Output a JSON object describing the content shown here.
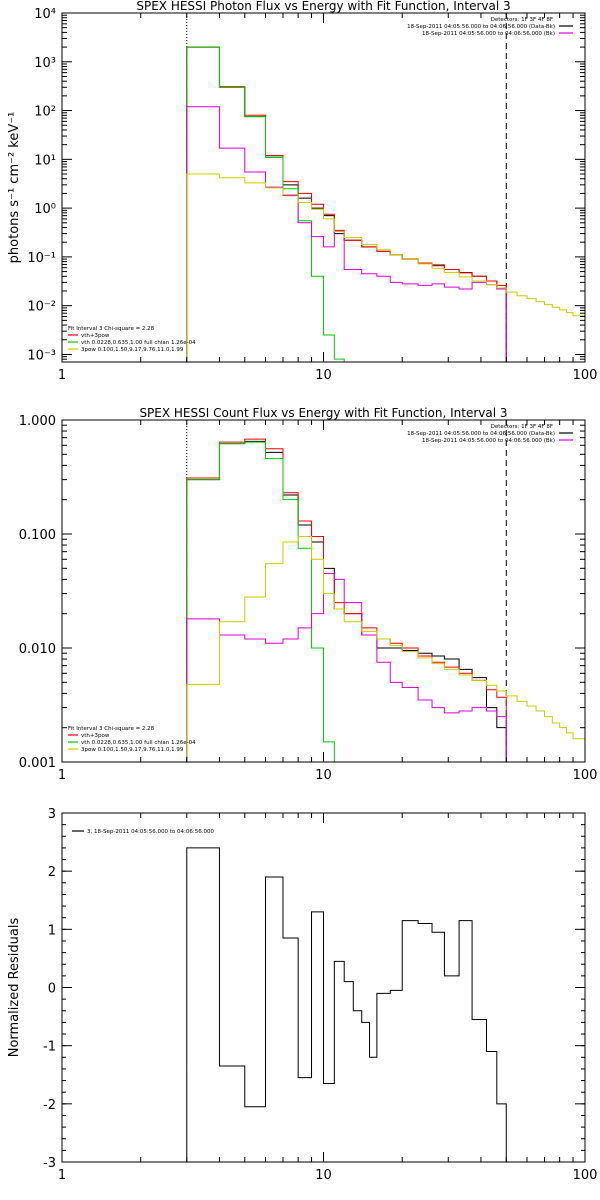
{
  "chart_data": [
    {
      "type": "line",
      "title": "SPEX HESSI Photon Flux vs Energy with Fit Function, Interval 3",
      "ylabel": "photons s⁻¹ cm⁻² keV⁻¹",
      "xlabel": "",
      "xscale": "log",
      "yscale": "log",
      "xlim": [
        1,
        100
      ],
      "ylim": [
        0.0007,
        10000
      ],
      "xticks": [
        "1",
        "10",
        "100"
      ],
      "yticks": [
        {
          "value": 0.001,
          "label": "10⁻³"
        },
        {
          "value": 0.01,
          "label": "10⁻²"
        },
        {
          "value": 0.1,
          "label": "10⁻¹"
        },
        {
          "value": 1,
          "label": "10⁰"
        },
        {
          "value": 10,
          "label": "10¹"
        },
        {
          "value": 100,
          "label": "10²"
        },
        {
          "value": 1000,
          "label": "10³"
        },
        {
          "value": 10000,
          "label": "10⁴"
        }
      ],
      "vlines": [
        {
          "x": 3,
          "style": "dotted"
        },
        {
          "x": 50,
          "style": "dashed"
        }
      ],
      "legend_topright": {
        "header": "Detectors: 1F 3F 4F 8F",
        "entries": [
          {
            "text": "18-Sep-2011 04:05:56.000 to 04:06:56.000 (Data-Bk)",
            "color": "#000000"
          },
          {
            "text": "18-Sep-2011 04:05:56.000 to 04:06:56.000 (Bk)",
            "color": "#dd00dd"
          }
        ]
      },
      "legend_bottomleft": {
        "header": "Fit Interval 3   Chi-square = 2.28",
        "entries": [
          {
            "text": "vth+3pow",
            "color": "#ff0000"
          },
          {
            "text": "vth 0.0228,0.635,1.00  full chian 1.26e-04",
            "color": "#00cc00"
          },
          {
            "text": "3pow 0.100,1.50,9.17,9.76,11.0,1.99",
            "color": "#cccc00"
          }
        ]
      },
      "series": [
        {
          "color": "#000000",
          "edges": [
            3,
            4,
            5,
            6,
            7,
            8,
            9,
            10,
            11,
            12,
            14,
            16,
            18,
            20,
            23,
            26,
            29,
            33,
            37,
            42,
            46,
            50
          ],
          "values": [
            2000,
            300,
            75,
            11,
            3.0,
            1.6,
            1.0,
            0.7,
            0.3,
            0.22,
            0.16,
            0.13,
            0.11,
            0.09,
            0.075,
            0.068,
            0.055,
            0.048,
            0.04,
            0.032,
            0.022
          ]
        },
        {
          "color": "#ff0000",
          "edges": [
            3,
            4,
            5,
            6,
            7,
            8,
            9,
            10,
            11,
            12,
            14,
            16,
            18,
            20,
            23,
            26,
            29,
            33,
            37,
            42,
            46,
            50
          ],
          "values": [
            2000,
            310,
            80,
            12,
            3.5,
            2.0,
            1.2,
            0.75,
            0.35,
            0.22,
            0.16,
            0.13,
            0.11,
            0.09,
            0.075,
            0.066,
            0.055,
            0.047,
            0.04,
            0.032,
            0.026
          ]
        },
        {
          "color": "#00cc00",
          "edges": [
            3,
            4,
            5,
            6,
            7,
            8,
            9,
            10,
            11,
            12
          ],
          "values": [
            2000,
            300,
            75,
            11,
            2.5,
            0.55,
            0.04,
            0.0025,
            0.0008
          ]
        },
        {
          "color": "#dd00dd",
          "edges": [
            3,
            4,
            5,
            6,
            7,
            8,
            9,
            10,
            11,
            12,
            14,
            16,
            18,
            20,
            23,
            26,
            29,
            33,
            37,
            42,
            46,
            50
          ],
          "values": [
            120,
            17,
            5.5,
            2.7,
            1.8,
            0.5,
            0.26,
            0.16,
            0.34,
            0.055,
            0.045,
            0.04,
            0.03,
            0.028,
            0.026,
            0.028,
            0.024,
            0.022,
            0.03,
            0.027,
            0.022
          ]
        },
        {
          "color": "#cccc00",
          "edges": [
            3,
            4,
            5,
            6,
            7,
            8,
            9,
            10,
            11,
            12,
            14,
            16,
            18,
            20,
            23,
            26,
            29,
            33,
            37,
            42,
            46,
            50,
            55,
            60,
            65,
            70,
            75,
            80,
            85,
            90,
            100
          ],
          "values": [
            5.0,
            4.2,
            3.3,
            2.6,
            1.9,
            1.3,
            0.95,
            0.6,
            0.33,
            0.25,
            0.18,
            0.14,
            0.11,
            0.089,
            0.072,
            0.058,
            0.048,
            0.039,
            0.032,
            0.027,
            0.023,
            0.019,
            0.016,
            0.014,
            0.012,
            0.0105,
            0.0093,
            0.0082,
            0.0072,
            0.0062
          ]
        }
      ]
    },
    {
      "type": "line",
      "title": "SPEX HESSI Count Flux vs Energy with Fit Function, Interval 3",
      "ylabel": "",
      "xlabel": "",
      "xscale": "log",
      "yscale": "log",
      "xlim": [
        1,
        100
      ],
      "ylim": [
        0.001,
        1.0
      ],
      "xticks": [
        "1",
        "10",
        "100"
      ],
      "yticks": [
        {
          "value": 0.001,
          "label": "0.001"
        },
        {
          "value": 0.01,
          "label": "0.010"
        },
        {
          "value": 0.1,
          "label": "0.100"
        },
        {
          "value": 1,
          "label": "1.000"
        }
      ],
      "vlines": [
        {
          "x": 3,
          "style": "dotted"
        },
        {
          "x": 50,
          "style": "dashed"
        }
      ],
      "legend_topright": {
        "header": "Detectors: 1F 3F 4F 8F",
        "entries": [
          {
            "text": "18-Sep-2011 04:05:56.000 to 04:06:56.000 (Data-Bk)",
            "color": "#000000"
          },
          {
            "text": "18-Sep-2011 04:05:56.000 to 04:06:56.000 (Bk)",
            "color": "#dd00dd"
          }
        ]
      },
      "legend_bottomleft": {
        "header": "Fit Interval 3   Chi-square = 2.28",
        "entries": [
          {
            "text": "vth+3pow",
            "color": "#ff0000"
          },
          {
            "text": "vth 0.0228,0.635,1.00  full chian 1.26e-04",
            "color": "#00cc00"
          },
          {
            "text": "3pow 0.100,1.50,9.17,9.76,11.0,1.99",
            "color": "#cccc00"
          }
        ]
      },
      "series": [
        {
          "color": "#000000",
          "edges": [
            3,
            4,
            5,
            6,
            7,
            8,
            9,
            10,
            11,
            12,
            14,
            16,
            18,
            20,
            23,
            26,
            29,
            33,
            37,
            42,
            46,
            50
          ],
          "values": [
            0.3,
            0.62,
            0.65,
            0.52,
            0.22,
            0.12,
            0.085,
            0.05,
            0.022,
            0.02,
            0.013,
            0.01,
            0.01,
            0.0095,
            0.009,
            0.0085,
            0.008,
            0.0065,
            0.0055,
            0.003,
            0.002
          ]
        },
        {
          "color": "#ff0000",
          "edges": [
            3,
            4,
            5,
            6,
            7,
            8,
            9,
            10,
            11,
            12,
            14,
            16,
            18,
            20,
            23,
            26,
            29,
            33,
            37,
            42,
            46,
            50
          ],
          "values": [
            0.31,
            0.64,
            0.68,
            0.56,
            0.23,
            0.13,
            0.095,
            0.045,
            0.025,
            0.02,
            0.015,
            0.012,
            0.011,
            0.01,
            0.0085,
            0.0075,
            0.0068,
            0.006,
            0.0052,
            0.0043,
            0.0037
          ]
        },
        {
          "color": "#00cc00",
          "edges": [
            3,
            4,
            5,
            6,
            7,
            8,
            9,
            10,
            11,
            12
          ],
          "values": [
            0.3,
            0.62,
            0.64,
            0.46,
            0.2,
            0.075,
            0.01,
            0.0015,
            0.0009
          ]
        },
        {
          "color": "#dd00dd",
          "edges": [
            3,
            4,
            5,
            6,
            7,
            8,
            9,
            10,
            11,
            12,
            14,
            16,
            18,
            20,
            23,
            26,
            29,
            33,
            37,
            42,
            46,
            50
          ],
          "values": [
            0.018,
            0.013,
            0.012,
            0.011,
            0.012,
            0.015,
            0.02,
            0.045,
            0.04,
            0.025,
            0.013,
            0.0075,
            0.005,
            0.0045,
            0.0035,
            0.003,
            0.0027,
            0.0028,
            0.003,
            0.0028,
            0.0025
          ]
        },
        {
          "color": "#cccc00",
          "edges": [
            3,
            4,
            5,
            6,
            7,
            8,
            9,
            10,
            11,
            12,
            14,
            16,
            18,
            20,
            23,
            26,
            29,
            33,
            37,
            42,
            46,
            50,
            55,
            60,
            65,
            70,
            75,
            80,
            85,
            90,
            100
          ],
          "values": [
            0.0048,
            0.017,
            0.028,
            0.055,
            0.085,
            0.095,
            0.06,
            0.03,
            0.022,
            0.017,
            0.014,
            0.012,
            0.0105,
            0.0093,
            0.0082,
            0.0073,
            0.0065,
            0.0058,
            0.0052,
            0.0047,
            0.0042,
            0.0038,
            0.0034,
            0.0031,
            0.0028,
            0.0025,
            0.0022,
            0.002,
            0.0018,
            0.0016
          ]
        }
      ]
    },
    {
      "type": "line",
      "title": "",
      "ylabel": "Normalized Residuals",
      "xlabel": "",
      "xscale": "log",
      "yscale": "linear",
      "xlim": [
        1,
        100
      ],
      "ylim": [
        -3,
        3
      ],
      "xticks": [
        "1",
        "10",
        "100"
      ],
      "yticks": [
        {
          "value": -3,
          "label": "-3"
        },
        {
          "value": -2,
          "label": "-2"
        },
        {
          "value": -1,
          "label": "-1"
        },
        {
          "value": 0,
          "label": "0"
        },
        {
          "value": 1,
          "label": "1"
        },
        {
          "value": 2,
          "label": "2"
        },
        {
          "value": 3,
          "label": "3"
        }
      ],
      "vlines": [],
      "legend_topleft": {
        "entries": [
          {
            "text": "3, 18-Sep-2011 04:05:56.000 to 04:06:56.000",
            "color": "#000000"
          }
        ]
      },
      "series": [
        {
          "color": "#000000",
          "edges": [
            3,
            4,
            5,
            6,
            7,
            8,
            9,
            10,
            11,
            12,
            13,
            14,
            15,
            16,
            18,
            20,
            23,
            26,
            29,
            33,
            37,
            42,
            46,
            50
          ],
          "values": [
            2.4,
            -1.35,
            -2.05,
            1.9,
            0.85,
            -1.55,
            1.3,
            -1.65,
            0.45,
            0.1,
            -0.4,
            -0.6,
            -1.2,
            -0.1,
            -0.05,
            1.15,
            1.1,
            0.95,
            0.2,
            1.15,
            -0.55,
            -1.1,
            -2.0
          ]
        }
      ]
    }
  ]
}
